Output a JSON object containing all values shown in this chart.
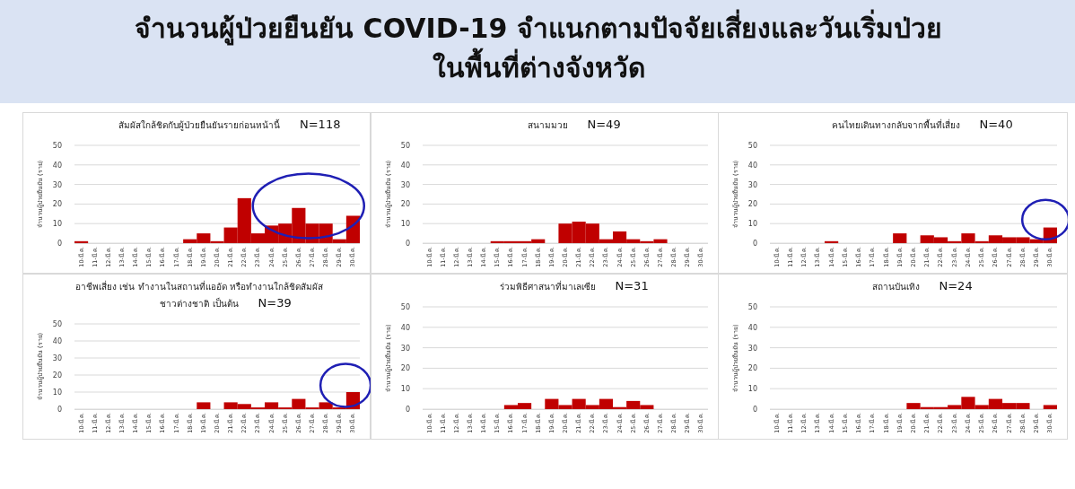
{
  "chart_data": [
    {
      "type": "bar",
      "title": "สัมผัสใกล้ชิดกับผู้ป่วยยืนยันรายก่อนหน้านี้",
      "subtitle": "N=118",
      "ylabel": "จำนวนผู้ป่วยยืนยัน (ราย)",
      "annotations": [
        "จำนวนผู้ป่วยยืนยัน COVID-19 จำแนกตามปัจจัยเสี่ยงและวันเริ่มป่วย ในพื้นที่ต่างจังหวัด"
      ],
      "categories": [
        "10-มี.ค.",
        "11-มี.ค.",
        "12-มี.ค.",
        "13-มี.ค.",
        "14-มี.ค.",
        "15-มี.ค.",
        "16-มี.ค.",
        "17-มี.ค.",
        "18-มี.ค.",
        "19-มี.ค.",
        "20-มี.ค.",
        "21-มี.ค.",
        "22-มี.ค.",
        "23-มี.ค.",
        "24-มี.ค.",
        "25-มี.ค.",
        "26-มี.ค.",
        "27-มี.ค.",
        "28-มี.ค.",
        "29-มี.ค.",
        "30-มี.ค."
      ],
      "values": [
        1,
        0,
        0,
        0,
        0,
        0,
        0,
        0,
        2,
        5,
        1,
        8,
        23,
        5,
        9,
        10,
        18,
        10,
        10,
        2,
        14
      ],
      "color": "#c00000",
      "ylim": [
        0,
        50
      ],
      "yticks": [
        0,
        10,
        20,
        30,
        40,
        50
      ],
      "grid": "y"
    },
    {
      "type": "bar",
      "title": "สนามมวย",
      "subtitle": "N=49",
      "ylabel": "จำนวนผู้ป่วยยืนยัน (ราย)",
      "categories": [
        "10-มี.ค.",
        "11-มี.ค.",
        "12-มี.ค.",
        "13-มี.ค.",
        "14-มี.ค.",
        "15-มี.ค.",
        "16-มี.ค.",
        "17-มี.ค.",
        "18-มี.ค.",
        "19-มี.ค.",
        "20-มี.ค.",
        "21-มี.ค.",
        "22-มี.ค.",
        "23-มี.ค.",
        "24-มี.ค.",
        "25-มี.ค.",
        "26-มี.ค.",
        "27-มี.ค.",
        "28-มี.ค.",
        "29-มี.ค.",
        "30-มี.ค."
      ],
      "values": [
        0,
        0,
        0,
        0,
        0,
        1,
        1,
        1,
        2,
        0,
        10,
        11,
        10,
        2,
        6,
        2,
        1,
        2,
        0,
        0,
        0
      ],
      "color": "#c00000",
      "ylim": [
        0,
        50
      ],
      "yticks": [
        0,
        10,
        20,
        30,
        40,
        50
      ],
      "grid": "y"
    },
    {
      "type": "bar",
      "title": "คนไทยเดินทางกลับจากพื้นที่เสี่ยง",
      "subtitle": "N=40",
      "ylabel": "จำนวนผู้ป่วยยืนยัน (ราย)",
      "categories": [
        "10-มี.ค.",
        "11-มี.ค.",
        "12-มี.ค.",
        "13-มี.ค.",
        "14-มี.ค.",
        "15-มี.ค.",
        "16-มี.ค.",
        "17-มี.ค.",
        "18-มี.ค.",
        "19-มี.ค.",
        "20-มี.ค.",
        "21-มี.ค.",
        "22-มี.ค.",
        "23-มี.ค.",
        "24-มี.ค.",
        "25-มี.ค.",
        "26-มี.ค.",
        "27-มี.ค.",
        "28-มี.ค.",
        "29-มี.ค.",
        "30-มี.ค."
      ],
      "values": [
        0,
        0,
        0,
        0,
        1,
        0,
        0,
        0,
        0,
        5,
        0,
        4,
        3,
        1,
        5,
        1,
        4,
        3,
        3,
        2,
        8
      ],
      "color": "#c00000",
      "ylim": [
        0,
        50
      ],
      "yticks": [
        0,
        10,
        20,
        30,
        40,
        50
      ],
      "grid": "y"
    },
    {
      "type": "bar",
      "title": "อาชีพเสี่ยง เช่น ทำงานในสถานที่แออัด หรือทำงานใกล้ชิดสัมผัส ชาวต่างชาติ เป็นต้น",
      "subtitle": "N=39",
      "ylabel": "จำนวนผู้ป่วยยืนยัน (ราย)",
      "categories": [
        "10-มี.ค.",
        "11-มี.ค.",
        "12-มี.ค.",
        "13-มี.ค.",
        "14-มี.ค.",
        "15-มี.ค.",
        "16-มี.ค.",
        "17-มี.ค.",
        "18-มี.ค.",
        "19-มี.ค.",
        "20-มี.ค.",
        "21-มี.ค.",
        "22-มี.ค.",
        "23-มี.ค.",
        "24-มี.ค.",
        "25-มี.ค.",
        "26-มี.ค.",
        "27-มี.ค.",
        "28-มี.ค.",
        "29-มี.ค.",
        "30-มี.ค."
      ],
      "values": [
        0,
        0,
        0,
        0,
        0,
        0,
        0,
        0,
        0,
        4,
        0,
        4,
        3,
        1,
        4,
        1,
        6,
        1,
        4,
        1,
        10
      ],
      "color": "#c00000",
      "ylim": [
        0,
        50
      ],
      "yticks": [
        0,
        10,
        20,
        30,
        40,
        50
      ],
      "grid": "y"
    },
    {
      "type": "bar",
      "title": "ร่วมพิธีศาสนาที่มาเลเซีย",
      "subtitle": "N=31",
      "ylabel": "จำนวนผู้ป่วยยืนยัน (ราย)",
      "categories": [
        "10-มี.ค.",
        "11-มี.ค.",
        "12-มี.ค.",
        "13-มี.ค.",
        "14-มี.ค.",
        "15-มี.ค.",
        "16-มี.ค.",
        "17-มี.ค.",
        "18-มี.ค.",
        "19-มี.ค.",
        "20-มี.ค.",
        "21-มี.ค.",
        "22-มี.ค.",
        "23-มี.ค.",
        "24-มี.ค.",
        "25-มี.ค.",
        "26-มี.ค.",
        "27-มี.ค.",
        "28-มี.ค.",
        "29-มี.ค.",
        "30-มี.ค."
      ],
      "values": [
        0,
        0,
        0,
        0,
        0,
        0,
        2,
        3,
        0,
        5,
        2,
        5,
        2,
        5,
        1,
        4,
        2,
        0,
        0,
        0,
        0
      ],
      "color": "#c00000",
      "ylim": [
        0,
        50
      ],
      "yticks": [
        0,
        10,
        20,
        30,
        40,
        50
      ],
      "grid": "y"
    },
    {
      "type": "bar",
      "title": "สถานบันเทิง",
      "subtitle": "N=24",
      "ylabel": "จำนวนผู้ป่วยยืนยัน (ราย)",
      "categories": [
        "10-มี.ค.",
        "11-มี.ค.",
        "12-มี.ค.",
        "13-มี.ค.",
        "14-มี.ค.",
        "15-มี.ค.",
        "16-มี.ค.",
        "17-มี.ค.",
        "18-มี.ค.",
        "19-มี.ค.",
        "20-มี.ค.",
        "21-มี.ค.",
        "22-มี.ค.",
        "23-มี.ค.",
        "24-มี.ค.",
        "25-มี.ค.",
        "26-มี.ค.",
        "27-มี.ค.",
        "28-มี.ค.",
        "29-มี.ค.",
        "30-มี.ค."
      ],
      "values": [
        0,
        0,
        0,
        0,
        0,
        0,
        0,
        0,
        0,
        0,
        3,
        1,
        1,
        2,
        6,
        2,
        5,
        3,
        3,
        0,
        2
      ],
      "color": "#c00000",
      "ylim": [
        0,
        50
      ],
      "yticks": [
        0,
        10,
        20,
        30,
        40,
        50
      ],
      "grid": "y"
    }
  ]
}
